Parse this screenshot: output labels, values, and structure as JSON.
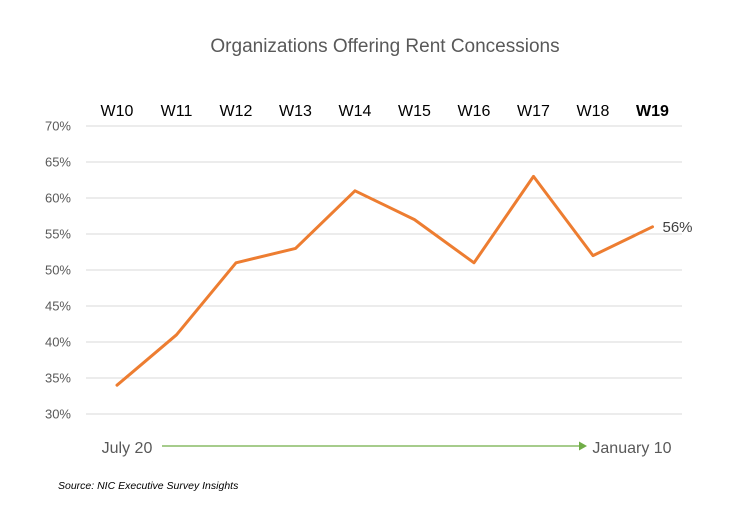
{
  "chart_data": {
    "type": "line",
    "title": "Organizations Offering Rent Concessions",
    "categories": [
      "W10",
      "W11",
      "W12",
      "W13",
      "W14",
      "W15",
      "W16",
      "W17",
      "W18",
      "W19"
    ],
    "series": [
      {
        "values": [
          34,
          41,
          51,
          53,
          61,
          57,
          51,
          63,
          52,
          56
        ]
      }
    ],
    "value_format": "percent",
    "ylim": [
      30,
      70
    ],
    "yticks": [
      "30%",
      "35%",
      "40%",
      "45%",
      "50%",
      "55%",
      "60%",
      "65%",
      "70%"
    ],
    "grid": true,
    "data_labels": [
      {
        "category": "W19",
        "text": "56%"
      }
    ],
    "highlight_category": "W19",
    "colors": {
      "line": "#ed7d31",
      "highlight": "#70ad47",
      "arrow": "#70ad47"
    }
  },
  "timeline": {
    "start": "July 20",
    "end": "January 10"
  },
  "source": "Source: NIC Executive Survey Insights"
}
